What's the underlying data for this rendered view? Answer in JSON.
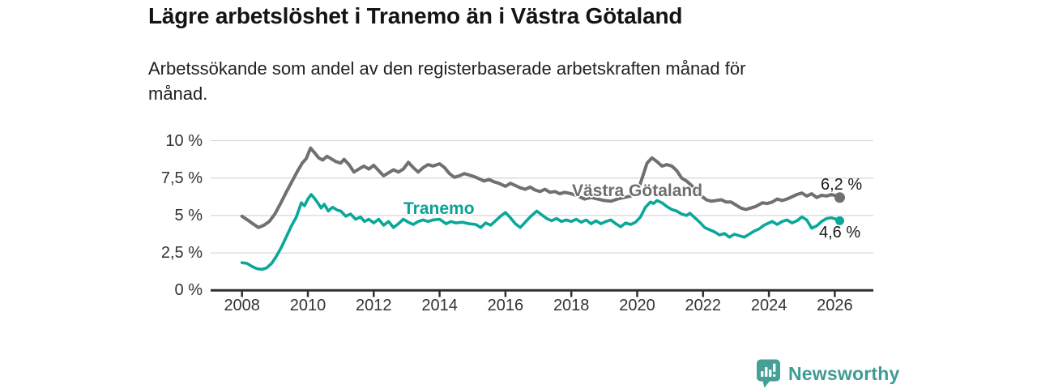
{
  "header": {
    "title": "Lägre arbetslöshet i Tranemo än i Västra Götaland",
    "subtitle_lines": [
      "Arbetssökande som andel av den registerbaserade arbetskraften månad för",
      "månad."
    ]
  },
  "chart_data": {
    "type": "line",
    "title": "Lägre arbetslöshet i Tranemo än i Västra Götaland",
    "subtitle": "Arbetssökande som andel av den registerbaserade arbetskraften månad för månad.",
    "xlabel": "",
    "ylabel": "",
    "unit": "%",
    "decimal_separator": ",",
    "ylim": [
      0,
      10
    ],
    "xlim": [
      2007.3,
      2027.2
    ],
    "grid": "horizontal",
    "legend_position": "inline-labels",
    "y_ticks": [
      {
        "value": 0,
        "label": "0 %"
      },
      {
        "value": 2.5,
        "label": "2,5 %"
      },
      {
        "value": 5,
        "label": "5 %"
      },
      {
        "value": 7.5,
        "label": "7,5 %"
      },
      {
        "value": 10,
        "label": "10 %"
      }
    ],
    "x_ticks": [
      {
        "value": 2008,
        "label": "2008"
      },
      {
        "value": 2010,
        "label": "2010"
      },
      {
        "value": 2012,
        "label": "2012"
      },
      {
        "value": 2014,
        "label": "2014"
      },
      {
        "value": 2016,
        "label": "2016"
      },
      {
        "value": 2018,
        "label": "2018"
      },
      {
        "value": 2020,
        "label": "2020"
      },
      {
        "value": 2022,
        "label": "2022"
      },
      {
        "value": 2024,
        "label": "2024"
      },
      {
        "value": 2026,
        "label": "2026"
      }
    ],
    "series": [
      {
        "name": "Västra Götaland",
        "color": "#707070",
        "line_width": 4,
        "end_label": "6,2 %",
        "end_value": 6.2,
        "end_dot_radius": 6.5,
        "points": [
          [
            2008.0,
            4.95
          ],
          [
            2008.17,
            4.7
          ],
          [
            2008.33,
            4.45
          ],
          [
            2008.5,
            4.2
          ],
          [
            2008.67,
            4.35
          ],
          [
            2008.83,
            4.6
          ],
          [
            2009.0,
            5.1
          ],
          [
            2009.17,
            5.8
          ],
          [
            2009.33,
            6.5
          ],
          [
            2009.5,
            7.2
          ],
          [
            2009.67,
            7.9
          ],
          [
            2009.83,
            8.5
          ],
          [
            2009.95,
            8.8
          ],
          [
            2010.08,
            9.5
          ],
          [
            2010.2,
            9.2
          ],
          [
            2010.33,
            8.85
          ],
          [
            2010.45,
            8.7
          ],
          [
            2010.58,
            8.95
          ],
          [
            2010.7,
            8.8
          ],
          [
            2010.85,
            8.6
          ],
          [
            2011.0,
            8.5
          ],
          [
            2011.1,
            8.75
          ],
          [
            2011.25,
            8.4
          ],
          [
            2011.4,
            7.9
          ],
          [
            2011.55,
            8.1
          ],
          [
            2011.7,
            8.3
          ],
          [
            2011.85,
            8.1
          ],
          [
            2012.0,
            8.35
          ],
          [
            2012.15,
            8.0
          ],
          [
            2012.3,
            7.65
          ],
          [
            2012.45,
            7.85
          ],
          [
            2012.6,
            8.05
          ],
          [
            2012.75,
            7.9
          ],
          [
            2012.9,
            8.1
          ],
          [
            2013.05,
            8.55
          ],
          [
            2013.2,
            8.2
          ],
          [
            2013.35,
            7.9
          ],
          [
            2013.5,
            8.2
          ],
          [
            2013.65,
            8.4
          ],
          [
            2013.8,
            8.3
          ],
          [
            2014.0,
            8.45
          ],
          [
            2014.15,
            8.2
          ],
          [
            2014.3,
            7.8
          ],
          [
            2014.45,
            7.55
          ],
          [
            2014.6,
            7.65
          ],
          [
            2014.75,
            7.8
          ],
          [
            2014.9,
            7.7
          ],
          [
            2015.05,
            7.6
          ],
          [
            2015.2,
            7.45
          ],
          [
            2015.35,
            7.3
          ],
          [
            2015.5,
            7.4
          ],
          [
            2015.65,
            7.25
          ],
          [
            2015.8,
            7.15
          ],
          [
            2016.0,
            6.95
          ],
          [
            2016.15,
            7.15
          ],
          [
            2016.3,
            7.0
          ],
          [
            2016.45,
            6.85
          ],
          [
            2016.6,
            6.75
          ],
          [
            2016.75,
            6.9
          ],
          [
            2016.9,
            6.7
          ],
          [
            2017.05,
            6.6
          ],
          [
            2017.2,
            6.75
          ],
          [
            2017.35,
            6.55
          ],
          [
            2017.5,
            6.6
          ],
          [
            2017.65,
            6.45
          ],
          [
            2017.8,
            6.55
          ],
          [
            2018.0,
            6.45
          ],
          [
            2018.2,
            6.3
          ],
          [
            2018.4,
            6.1
          ],
          [
            2018.6,
            6.2
          ],
          [
            2018.8,
            6.1
          ],
          [
            2019.0,
            6.0
          ],
          [
            2019.2,
            5.95
          ],
          [
            2019.4,
            6.1
          ],
          [
            2019.6,
            6.2
          ],
          [
            2019.8,
            6.3
          ],
          [
            2020.0,
            6.5
          ],
          [
            2020.15,
            7.5
          ],
          [
            2020.3,
            8.5
          ],
          [
            2020.45,
            8.85
          ],
          [
            2020.6,
            8.6
          ],
          [
            2020.75,
            8.3
          ],
          [
            2020.9,
            8.4
          ],
          [
            2021.05,
            8.3
          ],
          [
            2021.2,
            8.0
          ],
          [
            2021.35,
            7.5
          ],
          [
            2021.5,
            7.3
          ],
          [
            2021.65,
            7.0
          ],
          [
            2021.8,
            6.7
          ],
          [
            2021.95,
            6.3
          ],
          [
            2022.1,
            6.05
          ],
          [
            2022.25,
            5.95
          ],
          [
            2022.4,
            6.0
          ],
          [
            2022.55,
            6.05
          ],
          [
            2022.7,
            5.9
          ],
          [
            2022.85,
            5.9
          ],
          [
            2023.0,
            5.7
          ],
          [
            2023.15,
            5.5
          ],
          [
            2023.3,
            5.4
          ],
          [
            2023.45,
            5.5
          ],
          [
            2023.6,
            5.6
          ],
          [
            2023.8,
            5.85
          ],
          [
            2023.95,
            5.8
          ],
          [
            2024.1,
            5.9
          ],
          [
            2024.25,
            6.1
          ],
          [
            2024.4,
            6.0
          ],
          [
            2024.55,
            6.1
          ],
          [
            2024.7,
            6.25
          ],
          [
            2024.85,
            6.4
          ],
          [
            2025.0,
            6.5
          ],
          [
            2025.15,
            6.3
          ],
          [
            2025.3,
            6.45
          ],
          [
            2025.45,
            6.2
          ],
          [
            2025.6,
            6.35
          ],
          [
            2025.75,
            6.3
          ],
          [
            2025.9,
            6.4
          ],
          [
            2026.05,
            6.3
          ],
          [
            2026.15,
            6.2
          ]
        ]
      },
      {
        "name": "Tranemo",
        "color": "#0aa79a",
        "line_width": 3.6,
        "end_label": "4,6 %",
        "end_value": 4.6,
        "end_dot_radius": 5.5,
        "points": [
          [
            2008.0,
            1.85
          ],
          [
            2008.15,
            1.8
          ],
          [
            2008.3,
            1.6
          ],
          [
            2008.45,
            1.45
          ],
          [
            2008.6,
            1.4
          ],
          [
            2008.75,
            1.5
          ],
          [
            2008.9,
            1.8
          ],
          [
            2009.05,
            2.3
          ],
          [
            2009.2,
            2.9
          ],
          [
            2009.35,
            3.6
          ],
          [
            2009.5,
            4.3
          ],
          [
            2009.65,
            4.9
          ],
          [
            2009.8,
            5.85
          ],
          [
            2009.9,
            5.65
          ],
          [
            2010.0,
            6.1
          ],
          [
            2010.1,
            6.4
          ],
          [
            2010.2,
            6.15
          ],
          [
            2010.3,
            5.85
          ],
          [
            2010.4,
            5.5
          ],
          [
            2010.5,
            5.75
          ],
          [
            2010.62,
            5.3
          ],
          [
            2010.75,
            5.55
          ],
          [
            2010.9,
            5.35
          ],
          [
            2011.0,
            5.3
          ],
          [
            2011.15,
            4.95
          ],
          [
            2011.3,
            5.1
          ],
          [
            2011.45,
            4.75
          ],
          [
            2011.6,
            4.9
          ],
          [
            2011.72,
            4.6
          ],
          [
            2011.85,
            4.75
          ],
          [
            2012.0,
            4.5
          ],
          [
            2012.15,
            4.75
          ],
          [
            2012.3,
            4.35
          ],
          [
            2012.45,
            4.6
          ],
          [
            2012.6,
            4.2
          ],
          [
            2012.75,
            4.45
          ],
          [
            2012.9,
            4.75
          ],
          [
            2013.05,
            4.55
          ],
          [
            2013.2,
            4.4
          ],
          [
            2013.35,
            4.6
          ],
          [
            2013.5,
            4.7
          ],
          [
            2013.65,
            4.6
          ],
          [
            2013.8,
            4.7
          ],
          [
            2014.0,
            4.75
          ],
          [
            2014.2,
            4.45
          ],
          [
            2014.35,
            4.6
          ],
          [
            2014.5,
            4.5
          ],
          [
            2014.7,
            4.55
          ],
          [
            2014.9,
            4.45
          ],
          [
            2015.1,
            4.4
          ],
          [
            2015.25,
            4.2
          ],
          [
            2015.4,
            4.5
          ],
          [
            2015.55,
            4.35
          ],
          [
            2015.7,
            4.65
          ],
          [
            2015.85,
            4.95
          ],
          [
            2016.0,
            5.2
          ],
          [
            2016.15,
            4.85
          ],
          [
            2016.3,
            4.45
          ],
          [
            2016.45,
            4.2
          ],
          [
            2016.6,
            4.55
          ],
          [
            2016.75,
            4.9
          ],
          [
            2016.95,
            5.3
          ],
          [
            2017.1,
            5.05
          ],
          [
            2017.25,
            4.8
          ],
          [
            2017.4,
            4.65
          ],
          [
            2017.55,
            4.8
          ],
          [
            2017.7,
            4.6
          ],
          [
            2017.85,
            4.7
          ],
          [
            2018.0,
            4.6
          ],
          [
            2018.15,
            4.75
          ],
          [
            2018.3,
            4.55
          ],
          [
            2018.45,
            4.7
          ],
          [
            2018.6,
            4.45
          ],
          [
            2018.75,
            4.65
          ],
          [
            2018.9,
            4.45
          ],
          [
            2019.05,
            4.6
          ],
          [
            2019.2,
            4.7
          ],
          [
            2019.35,
            4.45
          ],
          [
            2019.5,
            4.25
          ],
          [
            2019.65,
            4.5
          ],
          [
            2019.8,
            4.4
          ],
          [
            2019.95,
            4.55
          ],
          [
            2020.1,
            4.9
          ],
          [
            2020.25,
            5.55
          ],
          [
            2020.4,
            5.9
          ],
          [
            2020.5,
            5.8
          ],
          [
            2020.6,
            6.0
          ],
          [
            2020.75,
            5.85
          ],
          [
            2020.9,
            5.6
          ],
          [
            2021.05,
            5.4
          ],
          [
            2021.2,
            5.3
          ],
          [
            2021.35,
            5.1
          ],
          [
            2021.5,
            5.0
          ],
          [
            2021.6,
            5.15
          ],
          [
            2021.75,
            4.85
          ],
          [
            2021.9,
            4.55
          ],
          [
            2022.05,
            4.2
          ],
          [
            2022.2,
            4.05
          ],
          [
            2022.35,
            3.9
          ],
          [
            2022.5,
            3.7
          ],
          [
            2022.65,
            3.8
          ],
          [
            2022.8,
            3.55
          ],
          [
            2022.95,
            3.75
          ],
          [
            2023.1,
            3.65
          ],
          [
            2023.25,
            3.55
          ],
          [
            2023.4,
            3.75
          ],
          [
            2023.55,
            3.95
          ],
          [
            2023.7,
            4.1
          ],
          [
            2023.85,
            4.35
          ],
          [
            2024.0,
            4.5
          ],
          [
            2024.1,
            4.6
          ],
          [
            2024.25,
            4.4
          ],
          [
            2024.4,
            4.6
          ],
          [
            2024.55,
            4.7
          ],
          [
            2024.7,
            4.5
          ],
          [
            2024.85,
            4.65
          ],
          [
            2025.0,
            4.9
          ],
          [
            2025.15,
            4.7
          ],
          [
            2025.3,
            4.15
          ],
          [
            2025.45,
            4.3
          ],
          [
            2025.6,
            4.6
          ],
          [
            2025.75,
            4.8
          ],
          [
            2025.9,
            4.85
          ],
          [
            2026.05,
            4.75
          ],
          [
            2026.15,
            4.65
          ]
        ]
      }
    ]
  },
  "branding": {
    "logo_text": "Newsworthy",
    "logo_icon": "bar-chart-speech-bubble-icon",
    "brand_color": "#46a098"
  },
  "style_colors": {
    "grid": "#d9d9d9",
    "axis": "#2f2f2f",
    "tick_text": "#333333",
    "end_label_text": "#1a1a1a"
  }
}
